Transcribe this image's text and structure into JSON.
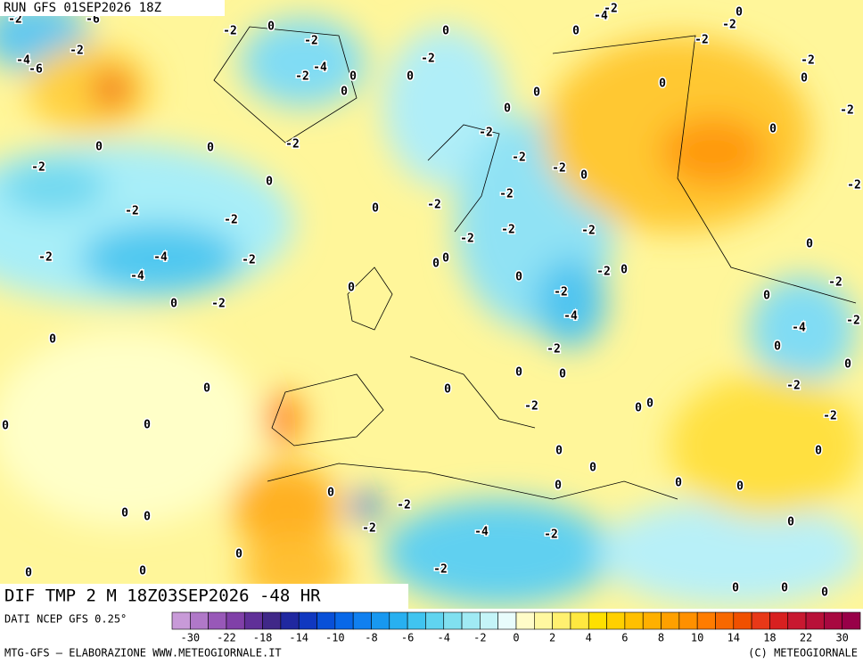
{
  "header": {
    "run": "RUN GFS 01SEP2026 18Z",
    "field": "DIF TMP 2 M 18Z03SEP2026 -48 HR"
  },
  "map": {
    "contour_labels": [
      -2,
      -6,
      -4,
      -6,
      -2,
      -2,
      0,
      -2,
      -4,
      -2,
      0,
      0,
      0,
      -2,
      0,
      -4,
      -2,
      0,
      0,
      -2,
      -2,
      -2,
      0,
      0,
      0,
      0,
      -2,
      0,
      -2,
      0,
      0,
      -2,
      -2,
      0,
      -2,
      -2,
      -2,
      0,
      -2,
      -2,
      0,
      -2,
      -2,
      -2,
      -2,
      -2,
      0,
      -2,
      -4,
      -2,
      0,
      0,
      -4,
      -2,
      0,
      0,
      0,
      -2,
      0,
      -2,
      0,
      -2,
      -4,
      -2,
      -4,
      0,
      0,
      -2,
      0,
      0,
      0,
      0,
      -2,
      0,
      -2,
      0,
      0,
      0,
      0,
      -2,
      0,
      0,
      0,
      0,
      0,
      0,
      0,
      -2,
      0,
      0,
      0,
      -2,
      -4,
      -2,
      0,
      -2,
      0,
      0,
      0,
      0,
      0
    ]
  },
  "colorbar": {
    "colors": [
      "#c89ad8",
      "#b078c8",
      "#9858b8",
      "#8040a8",
      "#603098",
      "#402888",
      "#2028a0",
      "#1038c0",
      "#0850d8",
      "#0868e8",
      "#1080f0",
      "#1898f0",
      "#28b0f0",
      "#40c4f0",
      "#60d4f0",
      "#80e0f0",
      "#a0eaf4",
      "#c4f4f8",
      "#e8fcfc",
      "#fffcc8",
      "#fff8a0",
      "#fff070",
      "#ffe840",
      "#ffe000",
      "#ffd000",
      "#ffc000",
      "#ffb000",
      "#ffa000",
      "#ff9000",
      "#ff7c00",
      "#f86800",
      "#f05000",
      "#e83818",
      "#d82020",
      "#c81830",
      "#b81038",
      "#a80840",
      "#980048"
    ],
    "ticks": [
      -30,
      -22,
      -18,
      -14,
      -10,
      -8,
      -6,
      -4,
      -2,
      0,
      2,
      4,
      6,
      8,
      10,
      14,
      18,
      22,
      30
    ]
  },
  "footer": {
    "source": "DATI NCEP GFS 0.25°",
    "credit": "MTG-GFS – ELABORAZIONE WWW.METEOGIORNALE.IT",
    "copyright": "(C) METEOGIORNALE"
  }
}
